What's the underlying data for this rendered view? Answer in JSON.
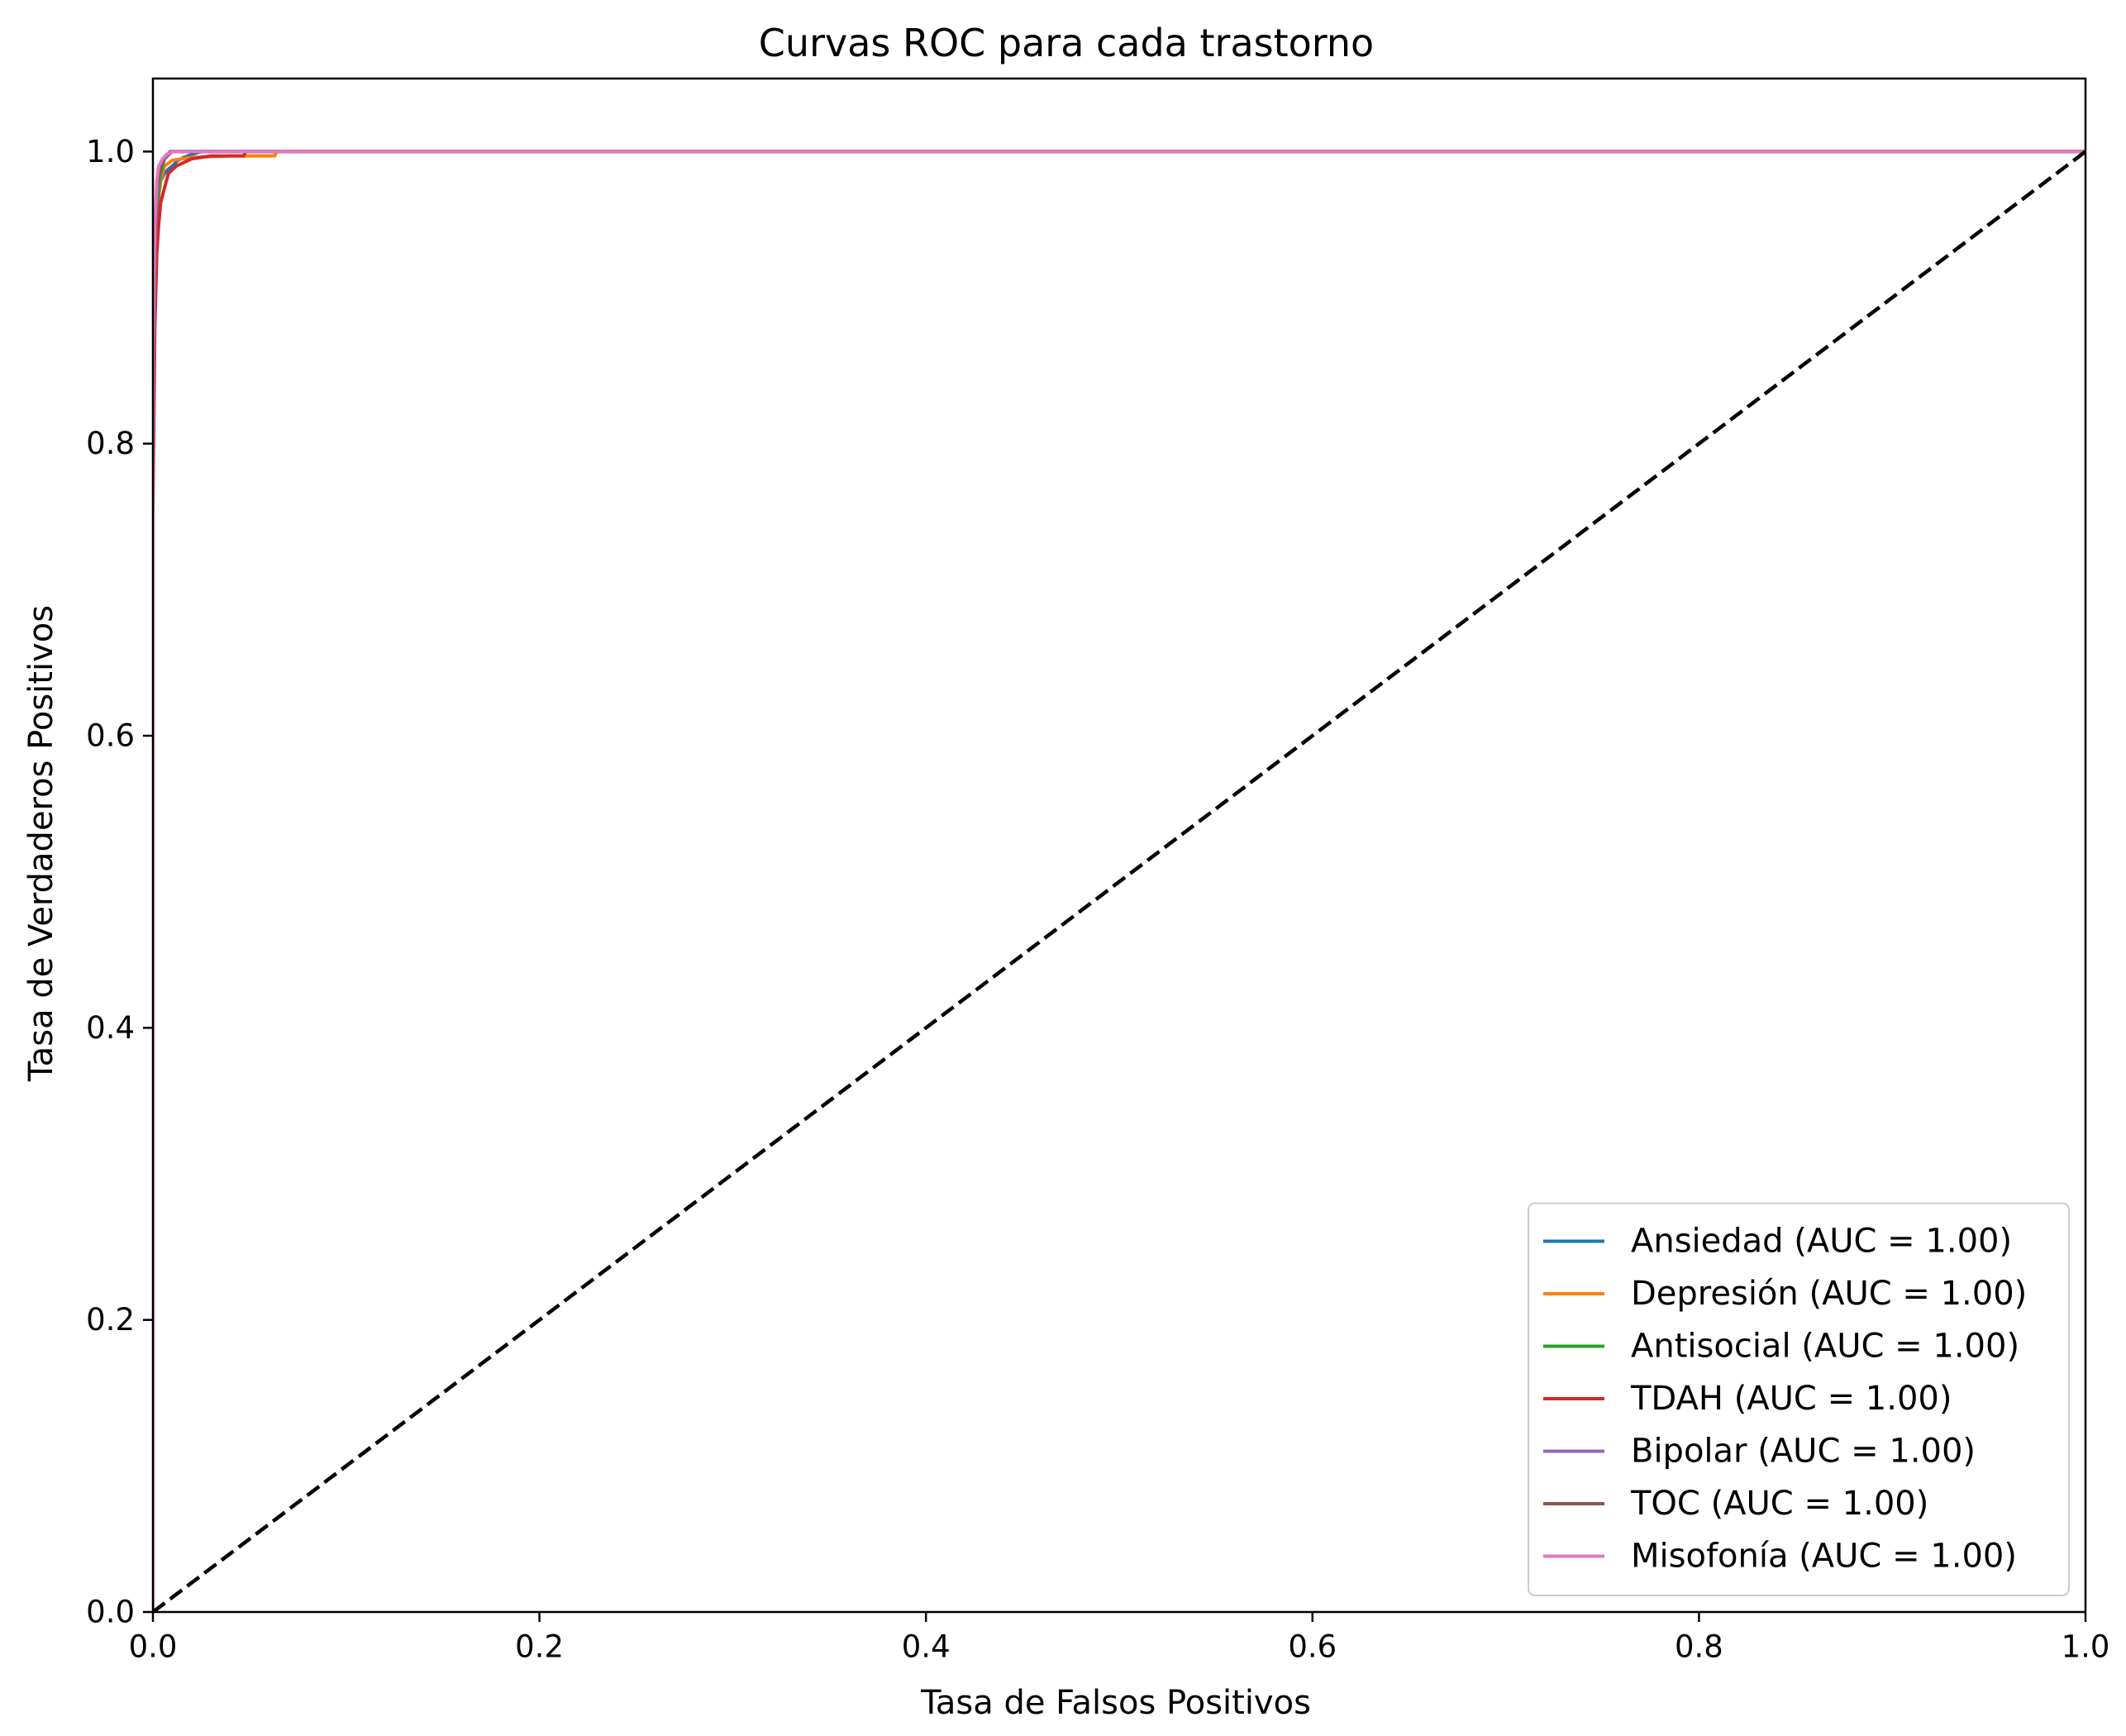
{
  "chart_data": {
    "type": "line",
    "title": "Curvas ROC para cada trastorno",
    "xlabel": "Tasa de Falsos Positivos",
    "ylabel": "Tasa de Verdaderos Positivos",
    "xlim": [
      0.0,
      1.0
    ],
    "ylim": [
      0.0,
      1.05
    ],
    "xticks": [
      "0.0",
      "0.2",
      "0.4",
      "0.6",
      "0.8",
      "1.0"
    ],
    "yticks": [
      "0.0",
      "0.2",
      "0.4",
      "0.6",
      "0.8",
      "1.0"
    ],
    "grid": false,
    "legend_position": "lower-right",
    "series": [
      {
        "name": "Ansiedad (AUC = 1.00)",
        "color": "#1f77b4",
        "x": [
          0,
          0,
          0.001,
          0.002,
          0.003,
          0.004,
          0.006,
          0.008,
          0.01,
          0.013,
          0.016,
          0.02,
          0.025,
          1.0
        ],
        "y": [
          0,
          0.8,
          0.9,
          0.95,
          0.97,
          0.98,
          0.985,
          0.988,
          0.99,
          0.994,
          0.996,
          0.998,
          1.0,
          1.0
        ]
      },
      {
        "name": "Depresión (AUC = 1.00)",
        "color": "#ff7f0e",
        "x": [
          0,
          0,
          0.001,
          0.002,
          0.004,
          0.006,
          0.01,
          0.02,
          0.04,
          0.063,
          0.064,
          1.0
        ],
        "y": [
          0,
          0.82,
          0.92,
          0.96,
          0.98,
          0.99,
          0.994,
          0.996,
          0.997,
          0.997,
          1.0,
          1.0
        ]
      },
      {
        "name": "Antisocial (AUC = 1.00)",
        "color": "#2ca02c",
        "x": [
          0,
          0,
          0.001,
          0.002,
          0.004,
          0.006,
          0.008,
          0.01,
          1.0
        ],
        "y": [
          0,
          0.85,
          0.91,
          0.96,
          0.985,
          0.995,
          0.998,
          1.0,
          1.0
        ]
      },
      {
        "name": "TDAH (AUC = 1.00)",
        "color": "#d62728",
        "x": [
          0,
          0,
          0.001,
          0.002,
          0.003,
          0.004,
          0.006,
          0.008,
          0.012,
          0.02,
          0.03,
          0.047,
          0.048,
          1.0
        ],
        "y": [
          0,
          0.75,
          0.88,
          0.93,
          0.95,
          0.965,
          0.975,
          0.985,
          0.99,
          0.995,
          0.997,
          0.997,
          1.0,
          1.0
        ]
      },
      {
        "name": "Bipolar (AUC = 1.00)",
        "color": "#9467bd",
        "x": [
          0,
          0,
          0.001,
          0.002,
          0.004,
          0.006,
          0.01,
          1.0
        ],
        "y": [
          0,
          0.8,
          0.93,
          0.97,
          0.99,
          0.995,
          1.0,
          1.0
        ]
      },
      {
        "name": "TOC (AUC = 1.00)",
        "color": "#8c564b",
        "x": [
          0,
          0,
          0.001,
          0.002,
          0.004,
          0.006,
          0.009,
          1.0
        ],
        "y": [
          0,
          0.83,
          0.94,
          0.975,
          0.99,
          0.996,
          1.0,
          1.0
        ]
      },
      {
        "name": "Misofonía (AUC = 1.00)",
        "color": "#e377c2",
        "x": [
          0,
          0,
          0.001,
          0.002,
          0.003,
          0.005,
          0.007,
          0.01,
          1.0
        ],
        "y": [
          0,
          0.86,
          0.95,
          0.98,
          0.99,
          0.995,
          0.998,
          1.0,
          1.0
        ]
      }
    ],
    "reference_line": {
      "x": [
        0,
        1
      ],
      "y": [
        0,
        1
      ],
      "color": "#000000",
      "style": "dashed"
    }
  }
}
